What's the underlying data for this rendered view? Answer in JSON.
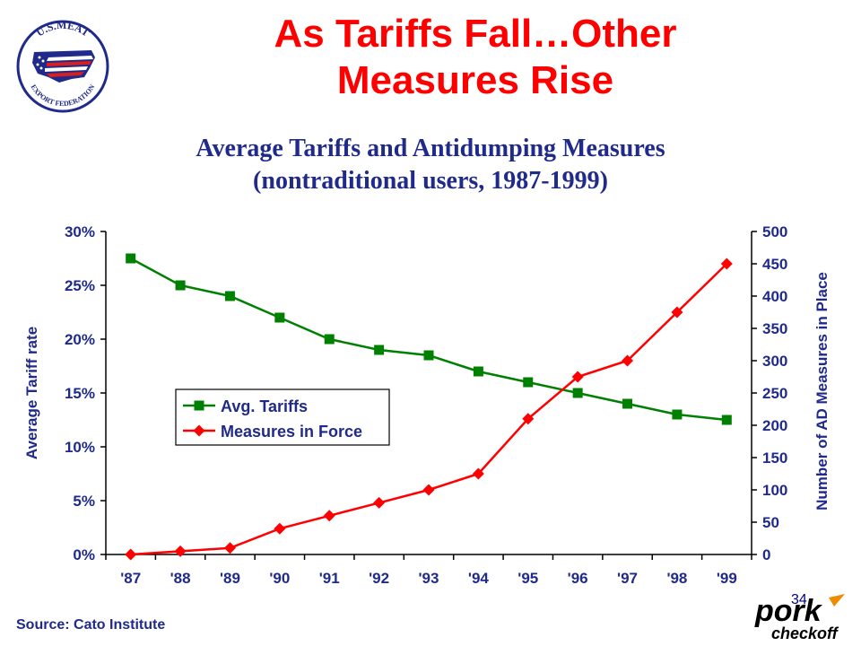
{
  "slide": {
    "title_line1": "As Tariffs Fall…Other",
    "title_line2": "Measures Rise",
    "source": "Source: Cato Institute",
    "page_number": "34",
    "logo_text_top": "U.S.MEAT",
    "logo_text_bottom": "EXPORT FEDERATION",
    "pork_logo_text1": "pork",
    "pork_logo_text2": "checkoff"
  },
  "chart_data": {
    "type": "line",
    "title_line1": "Average Tariffs and Antidumping Measures",
    "title_line2": "(nontraditional users, 1987-1999)",
    "categories": [
      "'87",
      "'88",
      "'89",
      "'90",
      "'91",
      "'92",
      "'93",
      "'94",
      "'95",
      "'96",
      "'97",
      "'98",
      "'99"
    ],
    "ylabel_left": "Average Tariff rate",
    "ylabel_right": "Number of AD Measures in Place",
    "ylim_left": [
      0,
      30
    ],
    "yticks_left": [
      "0%",
      "5%",
      "10%",
      "15%",
      "20%",
      "25%",
      "30%"
    ],
    "ylim_right": [
      0,
      500
    ],
    "yticks_right": [
      "0",
      "50",
      "100",
      "150",
      "200",
      "250",
      "300",
      "350",
      "400",
      "450",
      "500"
    ],
    "grid": false,
    "legend_position": "center-left",
    "series": [
      {
        "name": "Avg. Tariffs",
        "axis": "left",
        "color": "#008000",
        "marker": "square",
        "values": [
          27.5,
          25.0,
          24.0,
          22.0,
          20.0,
          19.0,
          18.5,
          17.0,
          16.0,
          15.0,
          14.0,
          13.0,
          12.5
        ]
      },
      {
        "name": "Measures in Force",
        "axis": "right",
        "color": "#ff0000",
        "marker": "diamond",
        "values": [
          0,
          5,
          10,
          40,
          60,
          80,
          100,
          125,
          210,
          275,
          300,
          375,
          450
        ]
      }
    ]
  },
  "colors": {
    "title": "#ff0000",
    "text_blue": "#1f2a8a",
    "tariff": "#008000",
    "measures": "#ff0000"
  }
}
